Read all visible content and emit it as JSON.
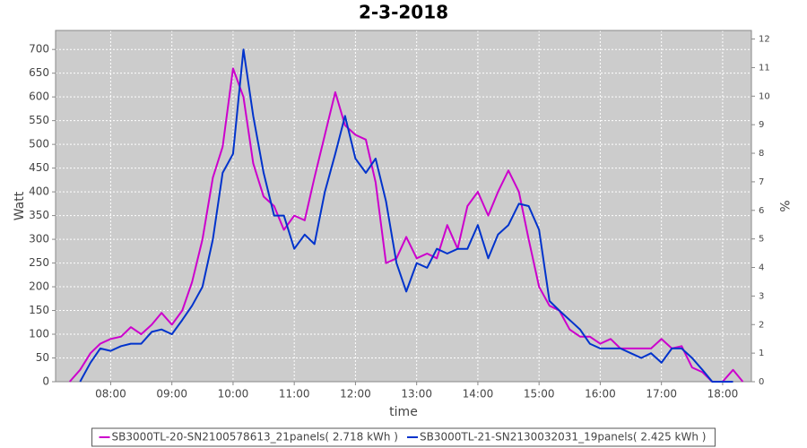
{
  "chart_data": {
    "type": "line",
    "title": "2-3-2018",
    "xlabel": "time",
    "ylabel": "Watt",
    "y2label": "%",
    "x": [
      7.33,
      7.5,
      7.67,
      7.83,
      8,
      8.17,
      8.33,
      8.5,
      8.67,
      8.83,
      9,
      9.17,
      9.33,
      9.5,
      9.67,
      9.83,
      10,
      10.17,
      10.33,
      10.5,
      10.67,
      10.83,
      11,
      11.17,
      11.33,
      11.5,
      11.67,
      11.83,
      12,
      12.17,
      12.33,
      12.5,
      12.67,
      12.83,
      13,
      13.17,
      13.33,
      13.5,
      13.67,
      13.83,
      14,
      14.17,
      14.33,
      14.5,
      14.67,
      14.83,
      15,
      15.17,
      15.33,
      15.5,
      15.67,
      15.83,
      16,
      16.17,
      16.33,
      16.5,
      16.67,
      16.83,
      17,
      17.17,
      17.33,
      17.5,
      17.67,
      17.83,
      18,
      18.17,
      18.33
    ],
    "series": [
      {
        "name": "SB3000TL-20-SN2100578613_21panels( 2.718 kWh )",
        "color": "#cc00cc",
        "values": [
          0,
          25,
          60,
          80,
          90,
          95,
          115,
          100,
          120,
          145,
          120,
          150,
          210,
          300,
          430,
          495,
          660,
          600,
          460,
          390,
          370,
          320,
          350,
          340,
          430,
          520,
          610,
          540,
          520,
          510,
          420,
          250,
          260,
          305,
          260,
          270,
          260,
          330,
          280,
          370,
          400,
          350,
          400,
          445,
          400,
          300,
          200,
          160,
          150,
          110,
          95,
          95,
          80,
          90,
          70,
          70,
          70,
          70,
          90,
          70,
          75,
          30,
          20,
          0,
          0,
          25,
          0
        ]
      },
      {
        "name": "SB3000TL-21-SN2130032031_19panels( 2.425 kWh )",
        "color": "#0033cc",
        "values": [
          null,
          0,
          40,
          70,
          65,
          75,
          80,
          80,
          105,
          110,
          100,
          130,
          160,
          200,
          300,
          440,
          480,
          700,
          560,
          440,
          350,
          350,
          280,
          310,
          290,
          400,
          480,
          560,
          470,
          440,
          470,
          380,
          250,
          190,
          250,
          240,
          280,
          270,
          280,
          280,
          330,
          260,
          310,
          330,
          375,
          370,
          320,
          170,
          150,
          130,
          110,
          80,
          70,
          70,
          70,
          60,
          50,
          60,
          40,
          70,
          70,
          50,
          25,
          0,
          0,
          0,
          null
        ]
      }
    ],
    "xlim": [
      7.1,
      18.47
    ],
    "xticks": [
      {
        "value": 8,
        "label": "08:00"
      },
      {
        "value": 9,
        "label": "09:00"
      },
      {
        "value": 10,
        "label": "10:00"
      },
      {
        "value": 11,
        "label": "11:00"
      },
      {
        "value": 12,
        "label": "12:00"
      },
      {
        "value": 13,
        "label": "13:00"
      },
      {
        "value": 14,
        "label": "14:00"
      },
      {
        "value": 15,
        "label": "15:00"
      },
      {
        "value": 16,
        "label": "16:00"
      },
      {
        "value": 17,
        "label": "17:00"
      },
      {
        "value": 18,
        "label": "18:00"
      }
    ],
    "ylim": [
      0,
      740
    ],
    "yticks": [
      0,
      50,
      100,
      150,
      200,
      250,
      300,
      350,
      400,
      450,
      500,
      550,
      600,
      650,
      700
    ],
    "y2lim": [
      0,
      12.3
    ],
    "y2ticks": [
      0,
      1,
      2,
      3,
      4,
      5,
      6,
      7,
      8,
      9,
      10,
      11,
      12
    ],
    "grid": true,
    "legend": "bottom",
    "plot_background": "#cccccc"
  }
}
